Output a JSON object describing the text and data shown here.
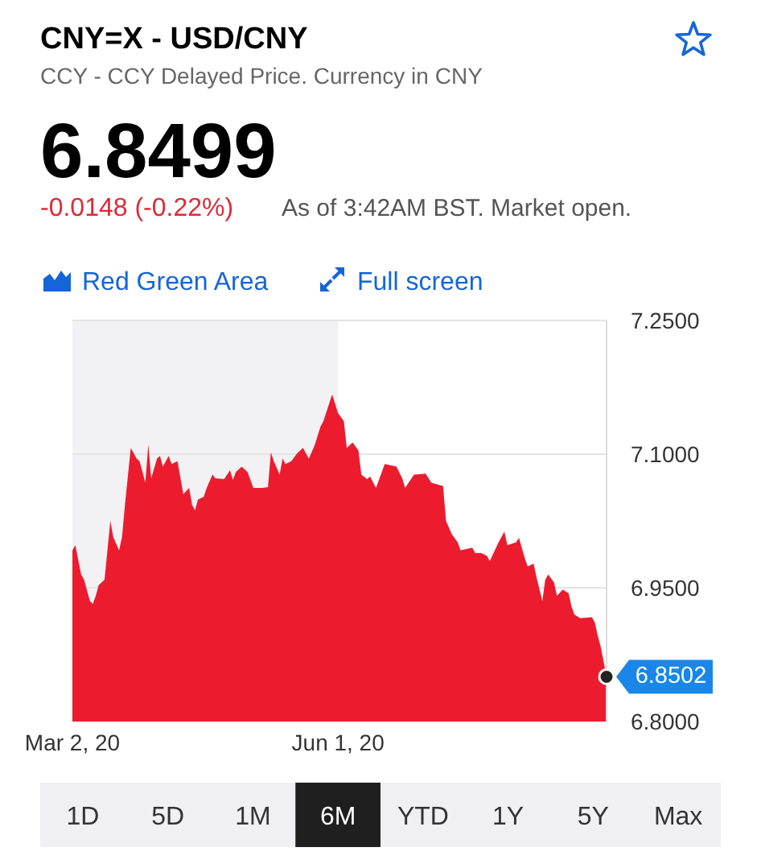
{
  "chart_data": {
    "type": "area",
    "title": "CNY=X - USD/CNY",
    "subtitle": "CCY - CCY Delayed Price. Currency in CNY",
    "annotations": [
      "6.8499",
      "-0.0148 (-0.22%)",
      "As of 3:42AM BST. Market open.",
      "Red Green Area",
      "Full screen",
      "1D",
      "5D",
      "1M",
      "6M",
      "YTD",
      "1Y",
      "5Y",
      "Max",
      {
        "text": "6.8502",
        "x": "2020-09-01",
        "y": 6.8502
      }
    ],
    "x": [
      "2020-03-02",
      "2020-03-03",
      "2020-03-05",
      "2020-03-06",
      "2020-03-08",
      "2020-03-09",
      "2020-03-10",
      "2020-03-11",
      "2020-03-13",
      "2020-03-15",
      "2020-03-16",
      "2020-03-18",
      "2020-03-19",
      "2020-03-20",
      "2020-03-22",
      "2020-03-24",
      "2020-03-25",
      "2020-03-27",
      "2020-03-28",
      "2020-03-29",
      "2020-03-31",
      "2020-04-01",
      "2020-04-02",
      "2020-04-04",
      "2020-04-05",
      "2020-04-07",
      "2020-04-09",
      "2020-04-11",
      "2020-04-12",
      "2020-04-13",
      "2020-04-14",
      "2020-04-16",
      "2020-04-17",
      "2020-04-19",
      "2020-04-20",
      "2020-04-23",
      "2020-04-25",
      "2020-04-26",
      "2020-04-27",
      "2020-04-29",
      "2020-05-01",
      "2020-05-03",
      "2020-05-06",
      "2020-05-08",
      "2020-05-09",
      "2020-05-10",
      "2020-05-12",
      "2020-05-13",
      "2020-05-14",
      "2020-05-16",
      "2020-05-18",
      "2020-05-20",
      "2020-05-22",
      "2020-05-24",
      "2020-05-26",
      "2020-05-27",
      "2020-05-30",
      "2020-06-01",
      "2020-06-03",
      "2020-06-04",
      "2020-06-06",
      "2020-06-08",
      "2020-06-09",
      "2020-06-11",
      "2020-06-12",
      "2020-06-14",
      "2020-06-16",
      "2020-06-17",
      "2020-06-21",
      "2020-06-23",
      "2020-06-24",
      "2020-06-27",
      "2020-07-01",
      "2020-07-03",
      "2020-07-07",
      "2020-07-08",
      "2020-07-10",
      "2020-07-12",
      "2020-07-13",
      "2020-07-17",
      "2020-07-18",
      "2020-07-20",
      "2020-07-22",
      "2020-07-23",
      "2020-07-26",
      "2020-07-28",
      "2020-07-29",
      "2020-08-01",
      "2020-08-02",
      "2020-08-04",
      "2020-08-05",
      "2020-08-07",
      "2020-08-08",
      "2020-08-10",
      "2020-08-11",
      "2020-08-12",
      "2020-08-14",
      "2020-08-15",
      "2020-08-17",
      "2020-08-19",
      "2020-08-20",
      "2020-08-21",
      "2020-08-23",
      "2020-08-27",
      "2020-08-28",
      "2020-08-29",
      "2020-08-30",
      "2020-09-01"
    ],
    "series": [
      {
        "color": "#ec1c2e",
        "values": [
          6.992,
          6.998,
          6.965,
          6.959,
          6.935,
          6.932,
          6.941,
          6.953,
          6.959,
          7.025,
          7.007,
          6.992,
          7.007,
          7.043,
          7.107,
          7.095,
          7.092,
          7.068,
          7.111,
          7.073,
          7.095,
          7.098,
          7.086,
          7.098,
          7.089,
          7.092,
          7.055,
          7.062,
          7.043,
          7.037,
          7.049,
          7.052,
          7.062,
          7.077,
          7.073,
          7.072,
          7.082,
          7.071,
          7.08,
          7.086,
          7.08,
          7.062,
          7.062,
          7.063,
          7.102,
          7.092,
          7.077,
          7.095,
          7.089,
          7.092,
          7.101,
          7.107,
          7.095,
          7.11,
          7.131,
          7.137,
          7.167,
          7.146,
          7.137,
          7.107,
          7.113,
          7.104,
          7.077,
          7.072,
          7.075,
          7.062,
          7.08,
          7.089,
          7.086,
          7.073,
          7.062,
          7.077,
          7.078,
          7.068,
          7.064,
          7.025,
          7.01,
          7.001,
          6.992,
          6.995,
          6.989,
          6.989,
          6.986,
          6.98,
          7.001,
          7.013,
          6.998,
          7.001,
          7.006,
          6.983,
          6.974,
          6.977,
          6.962,
          6.935,
          6.959,
          6.965,
          6.956,
          6.941,
          6.948,
          6.944,
          6.929,
          6.92,
          6.916,
          6.917,
          6.911,
          6.896,
          6.884,
          6.8502
        ]
      }
    ],
    "xlim": [
      "2020-03-02",
      "2020-09-01"
    ],
    "xticks": [
      {
        "value": "2020-03-02",
        "label": "Mar 2, 20"
      },
      {
        "value": "2020-06-01",
        "label": "Jun 1, 20"
      }
    ],
    "ylim": [
      6.8,
      7.25
    ],
    "yticks": [
      {
        "value": 6.8,
        "label": "6.8000"
      },
      {
        "value": 6.95,
        "label": "6.9500"
      },
      {
        "value": 7.1,
        "label": "7.1000"
      },
      {
        "value": 7.25,
        "label": "7.2500"
      }
    ],
    "bands": [
      {
        "axis": "x",
        "from": "2020-03-02",
        "to": "2020-06-01",
        "color": "#f2f2f4"
      }
    ],
    "grid": "y"
  }
}
